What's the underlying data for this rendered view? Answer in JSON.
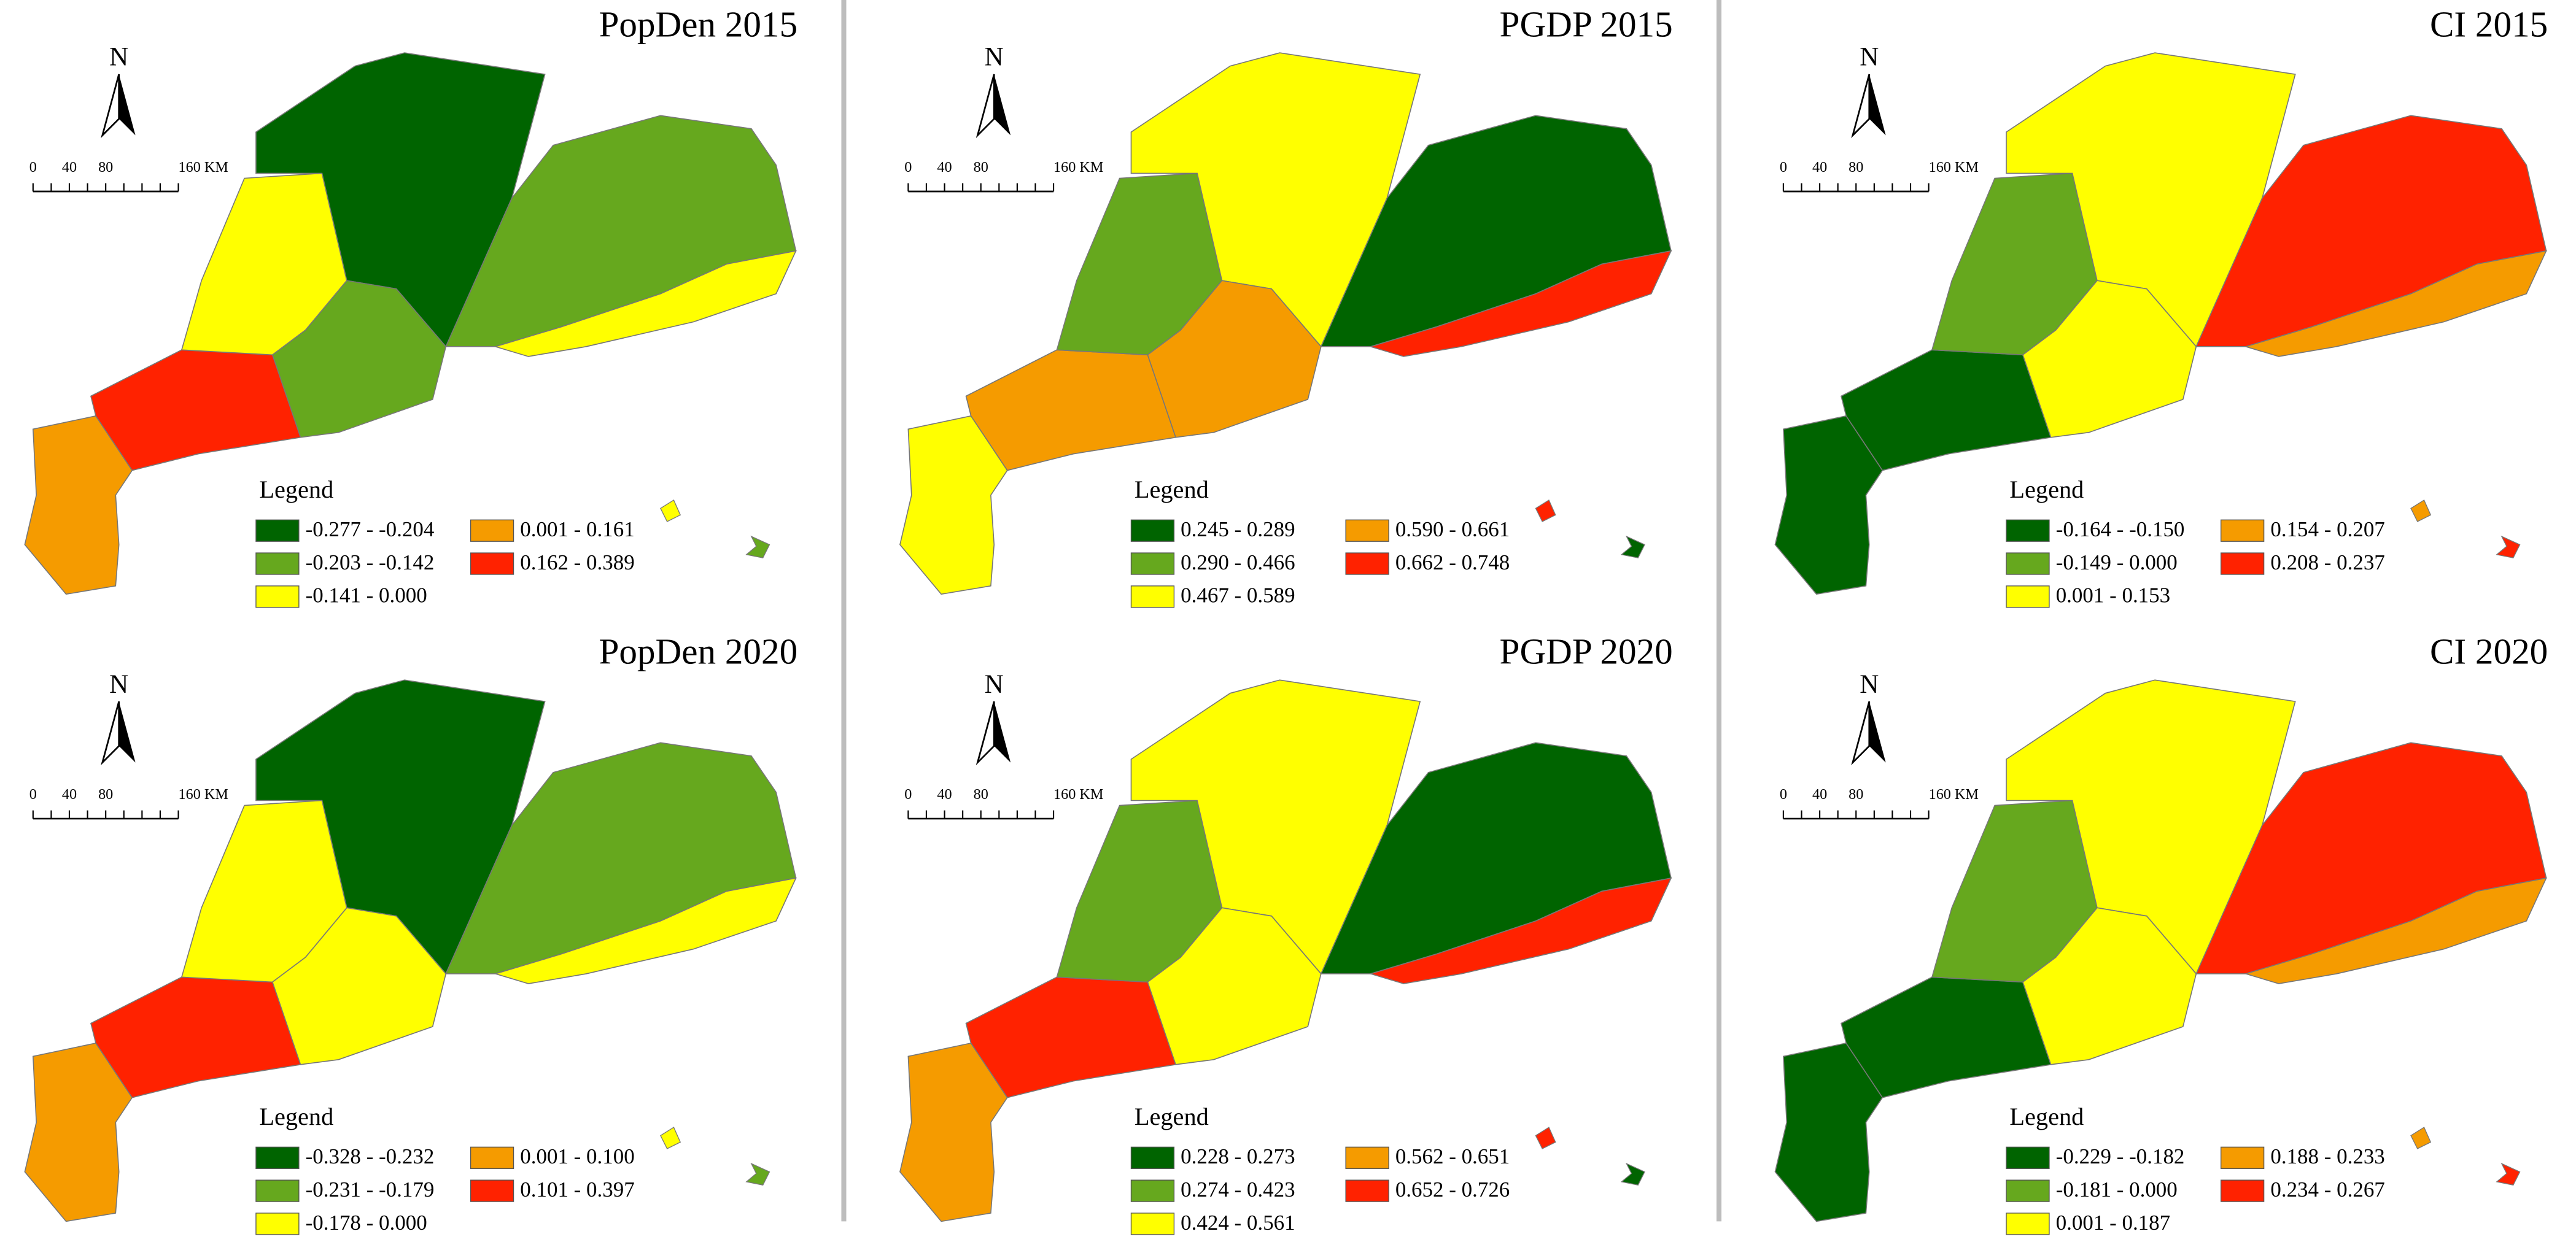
{
  "panels": [
    {
      "title": "PopDen 2015",
      "north": "N",
      "scale_labels": [
        "0",
        "40",
        "80",
        "160 KM"
      ],
      "legend_title": "Legend",
      "legend": [
        {
          "label": "-0.277 - -0.204",
          "color": "#006400"
        },
        {
          "label": "-0.203 - -0.142",
          "color": "#66a81e"
        },
        {
          "label": "-0.141 - 0.000",
          "color": "#ffff00"
        },
        {
          "label": "0.001 - 0.161",
          "color": "#f59b00"
        },
        {
          "label": "0.162 - 0.389",
          "color": "#ff2200"
        }
      ],
      "region_colors": [
        "#f59b00",
        "#ff2200",
        "#ffff00",
        "#006400",
        "#66a81e",
        "#66a81e",
        "#ffff00"
      ]
    },
    {
      "title": "PGDP 2015",
      "north": "N",
      "scale_labels": [
        "0",
        "40",
        "80",
        "160 KM"
      ],
      "legend_title": "Legend",
      "legend": [
        {
          "label": "0.245 - 0.289",
          "color": "#006400"
        },
        {
          "label": "0.290 - 0.466",
          "color": "#66a81e"
        },
        {
          "label": "0.467 - 0.589",
          "color": "#ffff00"
        },
        {
          "label": "0.590 - 0.661",
          "color": "#f59b00"
        },
        {
          "label": "0.662 - 0.748",
          "color": "#ff2200"
        }
      ],
      "region_colors": [
        "#ffff00",
        "#f59b00",
        "#66a81e",
        "#ffff00",
        "#f59b00",
        "#006400",
        "#ff2200"
      ]
    },
    {
      "title": "CI 2015",
      "north": "N",
      "scale_labels": [
        "0",
        "40",
        "80",
        "160 KM"
      ],
      "legend_title": "Legend",
      "legend": [
        {
          "label": "-0.164 - -0.150",
          "color": "#006400"
        },
        {
          "label": "-0.149 - 0.000",
          "color": "#66a81e"
        },
        {
          "label": "0.001 - 0.153",
          "color": "#ffff00"
        },
        {
          "label": "0.154 - 0.207",
          "color": "#f59b00"
        },
        {
          "label": "0.208 - 0.237",
          "color": "#ff2200"
        }
      ],
      "region_colors": [
        "#006400",
        "#006400",
        "#66a81e",
        "#ffff00",
        "#ffff00",
        "#ff2200",
        "#f59b00"
      ]
    },
    {
      "title": "PopDen 2020",
      "north": "N",
      "scale_labels": [
        "0",
        "40",
        "80",
        "160 KM"
      ],
      "legend_title": "Legend",
      "legend": [
        {
          "label": "-0.328 - -0.232",
          "color": "#006400"
        },
        {
          "label": "-0.231 - -0.179",
          "color": "#66a81e"
        },
        {
          "label": "-0.178 - 0.000",
          "color": "#ffff00"
        },
        {
          "label": "0.001 - 0.100",
          "color": "#f59b00"
        },
        {
          "label": "0.101 - 0.397",
          "color": "#ff2200"
        }
      ],
      "region_colors": [
        "#f59b00",
        "#ff2200",
        "#ffff00",
        "#006400",
        "#ffff00",
        "#66a81e",
        "#ffff00"
      ]
    },
    {
      "title": "PGDP 2020",
      "north": "N",
      "scale_labels": [
        "0",
        "40",
        "80",
        "160 KM"
      ],
      "legend_title": "Legend",
      "legend": [
        {
          "label": "0.228 - 0.273",
          "color": "#006400"
        },
        {
          "label": "0.274 - 0.423",
          "color": "#66a81e"
        },
        {
          "label": "0.424 - 0.561",
          "color": "#ffff00"
        },
        {
          "label": "0.562 - 0.651",
          "color": "#f59b00"
        },
        {
          "label": "0.652 - 0.726",
          "color": "#ff2200"
        }
      ],
      "region_colors": [
        "#f59b00",
        "#ff2200",
        "#66a81e",
        "#ffff00",
        "#ffff00",
        "#006400",
        "#ff2200"
      ]
    },
    {
      "title": "CI 2020",
      "north": "N",
      "scale_labels": [
        "0",
        "40",
        "80",
        "160 KM"
      ],
      "legend_title": "Legend",
      "legend": [
        {
          "label": "-0.229 - -0.182",
          "color": "#006400"
        },
        {
          "label": "-0.181 - 0.000",
          "color": "#66a81e"
        },
        {
          "label": "0.001 - 0.187",
          "color": "#ffff00"
        },
        {
          "label": "0.188 - 0.233",
          "color": "#f59b00"
        },
        {
          "label": "0.234 - 0.267",
          "color": "#ff2200"
        }
      ],
      "region_colors": [
        "#006400",
        "#006400",
        "#66a81e",
        "#ffff00",
        "#ffff00",
        "#ff2200",
        "#f59b00"
      ]
    }
  ]
}
